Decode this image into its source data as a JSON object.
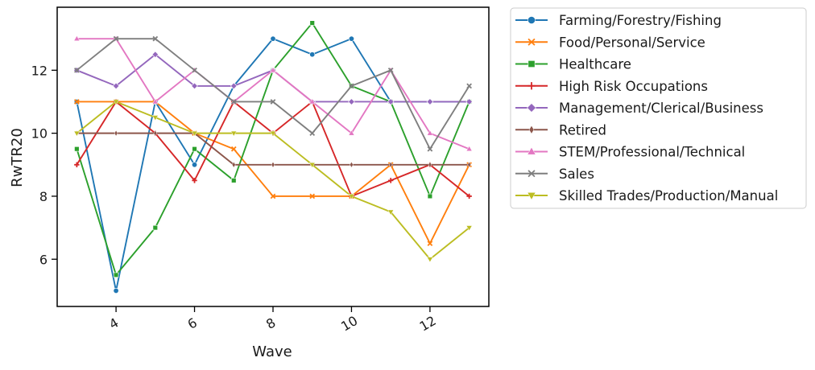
{
  "chart_data": {
    "type": "line",
    "xlabel": "Wave",
    "ylabel": "RwTR20",
    "xlim": [
      2.5,
      13.5
    ],
    "ylim": [
      4.5,
      14.0
    ],
    "xticks": [
      4,
      6,
      8,
      10,
      12
    ],
    "yticks": [
      6,
      8,
      10,
      12
    ],
    "x": [
      3,
      4,
      5,
      6,
      7,
      8,
      9,
      10,
      11,
      12,
      13
    ],
    "grid": false,
    "legend_position": "outside-right",
    "series": [
      {
        "name": "Farming/Forestry/Fishing",
        "color": "#1f77b4",
        "marker": "circle",
        "values": [
          11.0,
          5.0,
          11.0,
          9.0,
          11.5,
          13.0,
          12.5,
          13.0,
          11.0,
          11.0,
          11.0
        ]
      },
      {
        "name": "Food/Personal/Service",
        "color": "#ff7f0e",
        "marker": "x",
        "values": [
          11.0,
          11.0,
          11.0,
          10.0,
          9.5,
          8.0,
          8.0,
          8.0,
          9.0,
          6.5,
          9.0
        ]
      },
      {
        "name": "Healthcare",
        "color": "#2ca02c",
        "marker": "square",
        "values": [
          9.5,
          5.5,
          7.0,
          9.5,
          8.5,
          12.0,
          13.5,
          11.5,
          11.0,
          8.0,
          11.0
        ]
      },
      {
        "name": "High Risk Occupations",
        "color": "#d62728",
        "marker": "plus",
        "values": [
          9.0,
          11.0,
          10.0,
          8.5,
          11.0,
          10.0,
          11.0,
          8.0,
          8.5,
          9.0,
          8.0
        ]
      },
      {
        "name": "Management/Clerical/Business",
        "color": "#9467bd",
        "marker": "diamond",
        "values": [
          12.0,
          11.5,
          12.5,
          11.5,
          11.5,
          12.0,
          11.0,
          11.0,
          11.0,
          11.0,
          11.0
        ]
      },
      {
        "name": "Retired",
        "color": "#8c564b",
        "marker": "thin-diamond",
        "values": [
          10.0,
          10.0,
          10.0,
          10.0,
          9.0,
          9.0,
          9.0,
          9.0,
          9.0,
          9.0,
          9.0
        ]
      },
      {
        "name": "STEM/Professional/Technical",
        "color": "#e377c2",
        "marker": "triangle-up",
        "values": [
          13.0,
          13.0,
          11.0,
          12.0,
          11.0,
          12.0,
          11.0,
          10.0,
          12.0,
          10.0,
          9.5
        ]
      },
      {
        "name": "Sales",
        "color": "#7f7f7f",
        "marker": "x",
        "values": [
          12.0,
          13.0,
          13.0,
          12.0,
          11.0,
          11.0,
          10.0,
          11.5,
          12.0,
          9.5,
          11.5
        ]
      },
      {
        "name": "Skilled Trades/Production/Manual",
        "color": "#bcbd22",
        "marker": "triangle-down",
        "values": [
          10.0,
          11.0,
          10.5,
          10.0,
          10.0,
          10.0,
          9.0,
          8.0,
          7.5,
          6.0,
          7.0
        ]
      }
    ]
  }
}
